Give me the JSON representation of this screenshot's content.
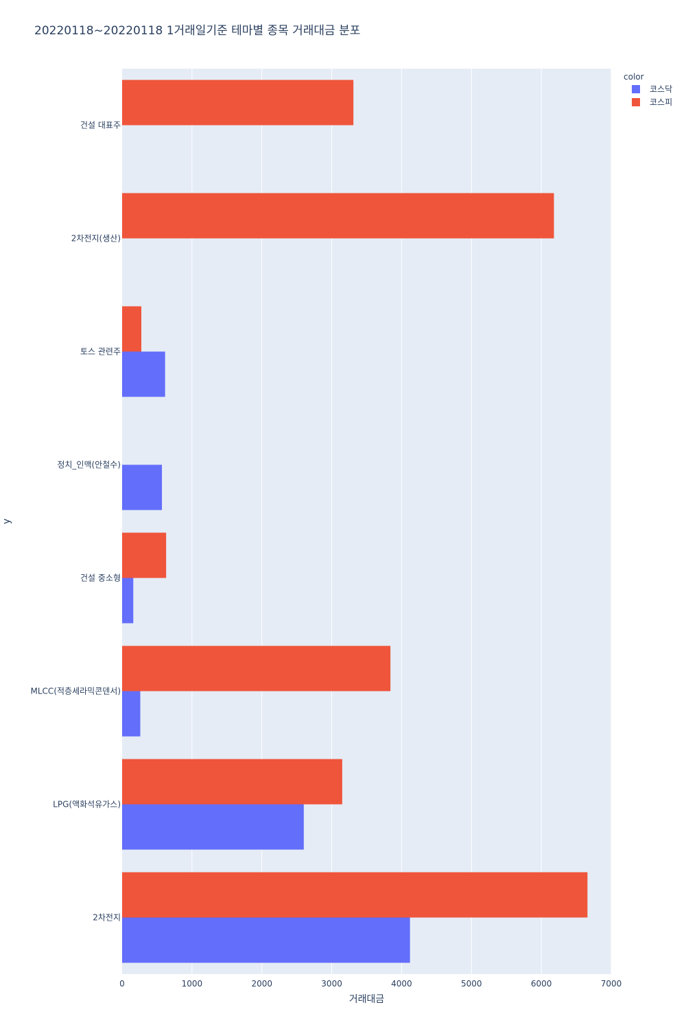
{
  "chart_data": {
    "type": "bar",
    "orientation": "horizontal",
    "barmode": "group",
    "title": "20220118~20220118 1거래일기준 테마별 종목 거래대금 분포",
    "xlabel": "거래대금",
    "ylabel": "y",
    "xlim": [
      0,
      7000
    ],
    "x_ticks": [
      0,
      1000,
      2000,
      3000,
      4000,
      5000,
      6000,
      7000
    ],
    "x_tick_labels": [
      "0",
      "1000",
      "2000",
      "3000",
      "4000",
      "5000",
      "6000",
      "7000"
    ],
    "grid": true,
    "legend_title": "color",
    "legend_position": "top-right",
    "categories": [
      "2차전지",
      "LPG(액화석유가스)",
      "MLCC(적층세라믹콘덴서)",
      "건설 중소형",
      "정치_인맥(안철수)",
      "토스 관련주",
      "2차전지(생산)",
      "건설 대표주"
    ],
    "series": [
      {
        "name": "코스닥",
        "color": "#636efa",
        "values": [
          4120,
          2600,
          260,
          160,
          570,
          615,
          null,
          null
        ]
      },
      {
        "name": "코스피",
        "color": "#ef553b",
        "values": [
          6660,
          3150,
          3840,
          630,
          null,
          275,
          6180,
          3310
        ]
      }
    ]
  }
}
